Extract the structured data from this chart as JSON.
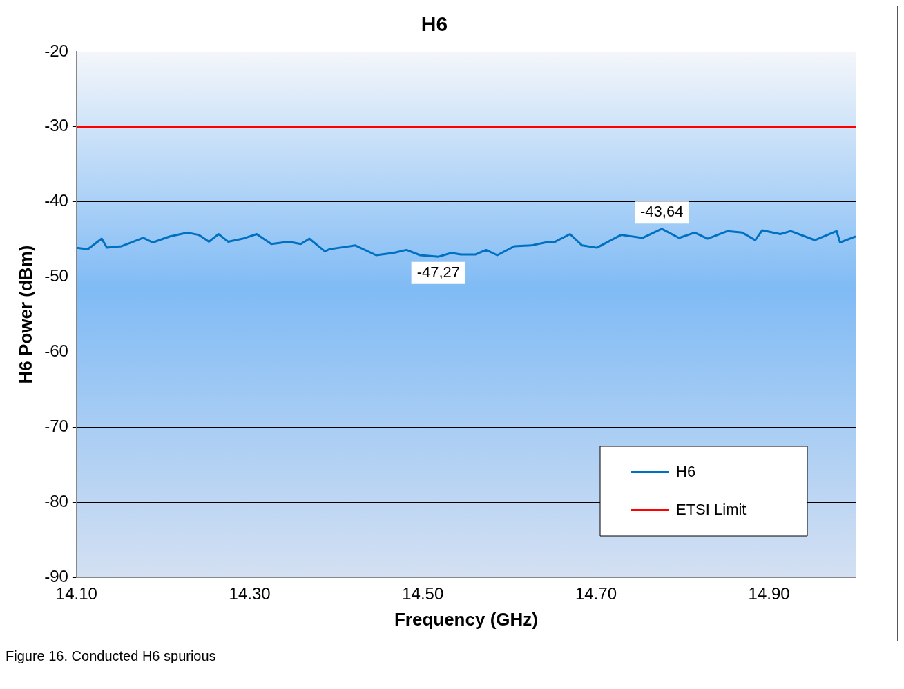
{
  "chart_data": {
    "type": "line",
    "title": "H6",
    "xlabel": "Frequency (GHz)",
    "ylabel": "H6 Power (dBm)",
    "xlim": [
      14.1,
      15.0
    ],
    "xticks": [
      {
        "value": 14.1,
        "label": "14.10"
      },
      {
        "value": 14.3,
        "label": "14.30"
      },
      {
        "value": 14.5,
        "label": "14.50"
      },
      {
        "value": 14.7,
        "label": "14.70"
      },
      {
        "value": 14.9,
        "label": "14.90"
      }
    ],
    "ylim": [
      -90,
      -20
    ],
    "yticks": [
      -90,
      -80,
      -70,
      -60,
      -50,
      -40,
      -30,
      -20
    ],
    "grid": "y",
    "legend": "bottom right",
    "marker": "none",
    "line_style": "solid",
    "series": [
      {
        "name": "H6",
        "color": "#0070c0",
        "x": [
          14.1,
          14.113,
          14.129,
          14.135,
          14.152,
          14.177,
          14.188,
          14.208,
          14.228,
          14.241,
          14.253,
          14.264,
          14.275,
          14.292,
          14.308,
          14.325,
          14.345,
          14.359,
          14.369,
          14.387,
          14.392,
          14.404,
          14.422,
          14.446,
          14.466,
          14.481,
          14.497,
          14.518,
          14.533,
          14.544,
          14.561,
          14.573,
          14.586,
          14.606,
          14.625,
          14.642,
          14.653,
          14.67,
          14.684,
          14.701,
          14.729,
          14.754,
          14.776,
          14.796,
          14.814,
          14.829,
          14.852,
          14.869,
          14.884,
          14.892,
          14.913,
          14.925,
          14.953,
          14.978,
          14.982,
          15.0
        ],
        "values": [
          -46.1,
          -46.3,
          -44.9,
          -46.1,
          -45.9,
          -44.8,
          -45.4,
          -44.6,
          -44.1,
          -44.4,
          -45.3,
          -44.3,
          -45.3,
          -44.9,
          -44.3,
          -45.6,
          -45.3,
          -45.6,
          -44.9,
          -46.6,
          -46.3,
          -46.1,
          -45.8,
          -47.1,
          -46.8,
          -46.4,
          -47.1,
          -47.3,
          -46.8,
          -47.0,
          -47.0,
          -46.4,
          -47.1,
          -45.9,
          -45.8,
          -45.4,
          -45.3,
          -44.3,
          -45.8,
          -46.1,
          -44.4,
          -44.8,
          -43.6,
          -44.8,
          -44.1,
          -44.9,
          -43.9,
          -44.1,
          -45.1,
          -43.8,
          -44.3,
          -43.9,
          -45.1,
          -43.9,
          -45.4,
          -44.6
        ]
      },
      {
        "name": "ETSI Limit",
        "color": "#ff0000",
        "x": [
          14.1,
          15.0
        ],
        "values": [
          -30,
          -30
        ]
      }
    ],
    "annotations": [
      {
        "text": "-43,64",
        "x": 14.776,
        "y": -43.64
      },
      {
        "text": "-47,27",
        "x": 14.518,
        "y": -47.27
      },
      "Figure 16.  Conducted H6 spurious"
    ]
  }
}
